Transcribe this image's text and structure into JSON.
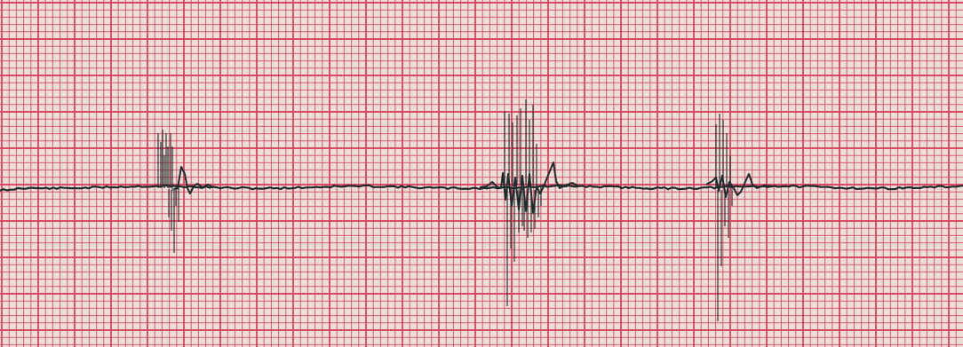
{
  "paper": {
    "background_color": "#f3e6df",
    "grid_color": "#e23a57",
    "trace_color": "#1d2b2c"
  },
  "beats": [
    {
      "label": "beat-1"
    },
    {
      "label": "beat-2-burst"
    },
    {
      "label": "beat-3"
    }
  ]
}
